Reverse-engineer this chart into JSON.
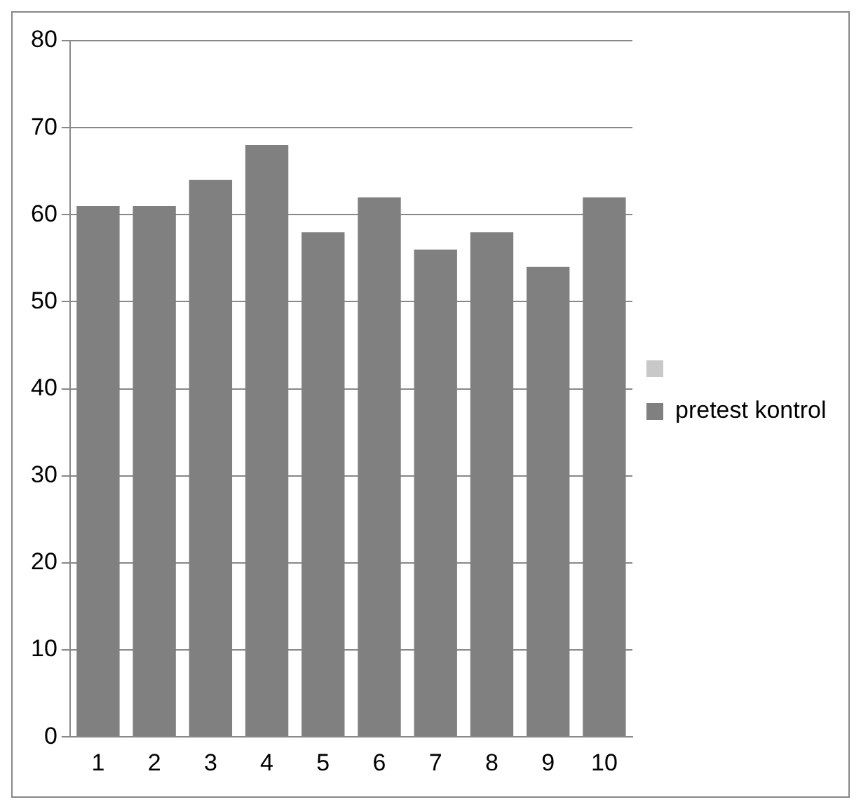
{
  "chart_data": {
    "type": "bar",
    "categories": [
      "1",
      "2",
      "3",
      "4",
      "5",
      "6",
      "7",
      "8",
      "9",
      "10"
    ],
    "series": [
      {
        "name": "pretest kontrol",
        "color": "#808080",
        "values": [
          61,
          61,
          64,
          68,
          58,
          62,
          56,
          58,
          54,
          62
        ]
      }
    ],
    "ylim": [
      0,
      80
    ],
    "yticks": [
      0,
      10,
      20,
      30,
      40,
      50,
      60,
      70,
      80
    ],
    "grid": "y",
    "legend": "right"
  }
}
